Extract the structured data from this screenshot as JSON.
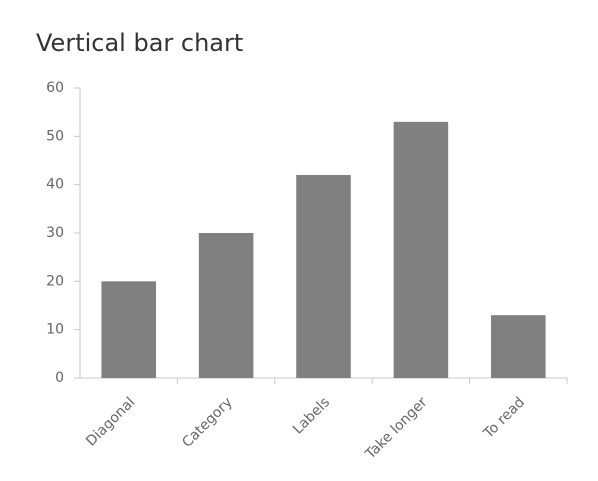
{
  "chart_data": {
    "type": "bar",
    "title": "Vertical bar chart",
    "categories": [
      "Diagonal",
      "Category",
      "Labels",
      "Take longer",
      "To read"
    ],
    "values": [
      20,
      30,
      42,
      53,
      13
    ],
    "color": "#808080",
    "ylim": [
      0,
      60
    ],
    "yticks": [
      0,
      10,
      20,
      30,
      40,
      50,
      60
    ],
    "grid": false
  }
}
